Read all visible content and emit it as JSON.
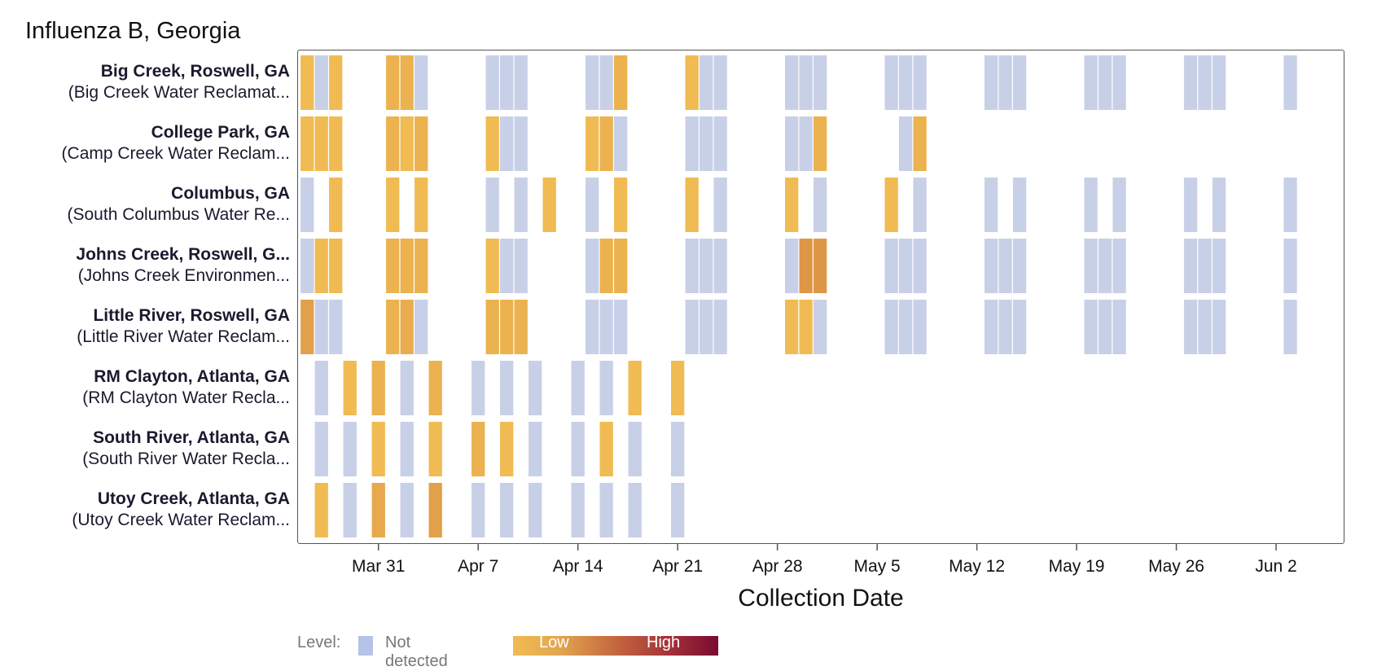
{
  "chart_data": {
    "type": "heatmap",
    "title": "Influenza B, Georgia",
    "xlabel": "Collection Date",
    "ylabel": "",
    "x_ticks": [
      {
        "label": "Mar 31",
        "day": 0
      },
      {
        "label": "Apr 7",
        "day": 7
      },
      {
        "label": "Apr 14",
        "day": 14
      },
      {
        "label": "Apr 21",
        "day": 21
      },
      {
        "label": "Apr 28",
        "day": 28
      },
      {
        "label": "May 5",
        "day": 35
      },
      {
        "label": "May 12",
        "day": 42
      },
      {
        "label": "May 19",
        "day": 49
      },
      {
        "label": "May 26",
        "day": 56
      },
      {
        "label": "Jun 2",
        "day": 63
      }
    ],
    "x_range_days": [
      -5.7,
      67.8
    ],
    "value_scale": {
      "not_detected": null,
      "low": 0,
      "high": 1
    },
    "colors": {
      "not_detected": "#c8d0e8",
      "low": "#f0bb52",
      "mid": "#d98e44",
      "high": "#7a0a32",
      "border": "#555555"
    },
    "rows": [
      {
        "site": "Big Creek, Roswell, GA",
        "plant": "(Big Creek Water Reclamat...",
        "samples": [
          {
            "day": -5,
            "level": 0.0
          },
          {
            "day": -4,
            "level": null
          },
          {
            "day": -3,
            "level": 0.0
          },
          {
            "day": 1,
            "level": 0.05
          },
          {
            "day": 2,
            "level": 0.05
          },
          {
            "day": 3,
            "level": null
          },
          {
            "day": 8,
            "level": null
          },
          {
            "day": 9,
            "level": null
          },
          {
            "day": 10,
            "level": null
          },
          {
            "day": 15,
            "level": null
          },
          {
            "day": 16,
            "level": null
          },
          {
            "day": 17,
            "level": 0.05
          },
          {
            "day": 22,
            "level": 0.0
          },
          {
            "day": 23,
            "level": null
          },
          {
            "day": 24,
            "level": null
          },
          {
            "day": 29,
            "level": null
          },
          {
            "day": 30,
            "level": null
          },
          {
            "day": 31,
            "level": null
          },
          {
            "day": 36,
            "level": null
          },
          {
            "day": 37,
            "level": null
          },
          {
            "day": 38,
            "level": null
          },
          {
            "day": 43,
            "level": null
          },
          {
            "day": 44,
            "level": null
          },
          {
            "day": 45,
            "level": null
          },
          {
            "day": 50,
            "level": null
          },
          {
            "day": 51,
            "level": null
          },
          {
            "day": 52,
            "level": null
          },
          {
            "day": 57,
            "level": null
          },
          {
            "day": 58,
            "level": null
          },
          {
            "day": 59,
            "level": null
          },
          {
            "day": 64,
            "level": null
          }
        ]
      },
      {
        "site": "College Park, GA",
        "plant": "(Camp Creek Water Reclam...",
        "samples": [
          {
            "day": -5,
            "level": 0.0
          },
          {
            "day": -4,
            "level": 0.0
          },
          {
            "day": -3,
            "level": 0.0
          },
          {
            "day": 1,
            "level": 0.05
          },
          {
            "day": 2,
            "level": 0.0
          },
          {
            "day": 3,
            "level": 0.05
          },
          {
            "day": 8,
            "level": 0.0
          },
          {
            "day": 9,
            "level": null
          },
          {
            "day": 10,
            "level": null
          },
          {
            "day": 15,
            "level": 0.0
          },
          {
            "day": 16,
            "level": 0.05
          },
          {
            "day": 17,
            "level": null
          },
          {
            "day": 22,
            "level": null
          },
          {
            "day": 23,
            "level": null
          },
          {
            "day": 24,
            "level": null
          },
          {
            "day": 29,
            "level": null
          },
          {
            "day": 30,
            "level": null
          },
          {
            "day": 31,
            "level": 0.05
          },
          {
            "day": 37,
            "level": null
          },
          {
            "day": 38,
            "level": 0.05
          }
        ]
      },
      {
        "site": "Columbus, GA",
        "plant": "(South Columbus Water Re...",
        "samples": [
          {
            "day": -5,
            "level": null
          },
          {
            "day": -3,
            "level": 0.0
          },
          {
            "day": 1,
            "level": 0.0
          },
          {
            "day": 3,
            "level": 0.0
          },
          {
            "day": 8,
            "level": null
          },
          {
            "day": 10,
            "level": null
          },
          {
            "day": 12,
            "level": 0.0
          },
          {
            "day": 15,
            "level": null
          },
          {
            "day": 17,
            "level": 0.0
          },
          {
            "day": 22,
            "level": 0.0
          },
          {
            "day": 24,
            "level": null
          },
          {
            "day": 29,
            "level": 0.0
          },
          {
            "day": 31,
            "level": null
          },
          {
            "day": 36,
            "level": 0.0
          },
          {
            "day": 38,
            "level": null
          },
          {
            "day": 43,
            "level": null
          },
          {
            "day": 45,
            "level": null
          },
          {
            "day": 50,
            "level": null
          },
          {
            "day": 52,
            "level": null
          },
          {
            "day": 57,
            "level": null
          },
          {
            "day": 59,
            "level": null
          },
          {
            "day": 64,
            "level": null
          }
        ]
      },
      {
        "site": "Johns Creek, Roswell, G...",
        "plant": "(Johns Creek Environmen...",
        "samples": [
          {
            "day": -5,
            "level": null
          },
          {
            "day": -4,
            "level": 0.0
          },
          {
            "day": -3,
            "level": 0.0
          },
          {
            "day": 1,
            "level": 0.05
          },
          {
            "day": 2,
            "level": 0.05
          },
          {
            "day": 3,
            "level": 0.05
          },
          {
            "day": 8,
            "level": 0.0
          },
          {
            "day": 9,
            "level": null
          },
          {
            "day": 10,
            "level": null
          },
          {
            "day": 15,
            "level": null
          },
          {
            "day": 16,
            "level": 0.05
          },
          {
            "day": 17,
            "level": 0.05
          },
          {
            "day": 22,
            "level": null
          },
          {
            "day": 23,
            "level": null
          },
          {
            "day": 24,
            "level": null
          },
          {
            "day": 29,
            "level": null
          },
          {
            "day": 30,
            "level": 0.2
          },
          {
            "day": 31,
            "level": 0.2
          },
          {
            "day": 36,
            "level": null
          },
          {
            "day": 37,
            "level": null
          },
          {
            "day": 38,
            "level": null
          },
          {
            "day": 43,
            "level": null
          },
          {
            "day": 44,
            "level": null
          },
          {
            "day": 45,
            "level": null
          },
          {
            "day": 50,
            "level": null
          },
          {
            "day": 51,
            "level": null
          },
          {
            "day": 52,
            "level": null
          },
          {
            "day": 57,
            "level": null
          },
          {
            "day": 58,
            "level": null
          },
          {
            "day": 59,
            "level": null
          },
          {
            "day": 64,
            "level": null
          }
        ]
      },
      {
        "site": "Little River, Roswell, GA",
        "plant": "(Little River Water Reclam...",
        "samples": [
          {
            "day": -5,
            "level": 0.15
          },
          {
            "day": -4,
            "level": null
          },
          {
            "day": -3,
            "level": null
          },
          {
            "day": 1,
            "level": 0.05
          },
          {
            "day": 2,
            "level": 0.08
          },
          {
            "day": 3,
            "level": null
          },
          {
            "day": 8,
            "level": 0.05
          },
          {
            "day": 9,
            "level": 0.05
          },
          {
            "day": 10,
            "level": 0.05
          },
          {
            "day": 15,
            "level": null
          },
          {
            "day": 16,
            "level": null
          },
          {
            "day": 17,
            "level": null
          },
          {
            "day": 22,
            "level": null
          },
          {
            "day": 23,
            "level": null
          },
          {
            "day": 24,
            "level": null
          },
          {
            "day": 29,
            "level": 0.0
          },
          {
            "day": 30,
            "level": 0.0
          },
          {
            "day": 31,
            "level": null
          },
          {
            "day": 36,
            "level": null
          },
          {
            "day": 37,
            "level": null
          },
          {
            "day": 38,
            "level": null
          },
          {
            "day": 43,
            "level": null
          },
          {
            "day": 44,
            "level": null
          },
          {
            "day": 45,
            "level": null
          },
          {
            "day": 50,
            "level": null
          },
          {
            "day": 51,
            "level": null
          },
          {
            "day": 52,
            "level": null
          },
          {
            "day": 57,
            "level": null
          },
          {
            "day": 58,
            "level": null
          },
          {
            "day": 59,
            "level": null
          },
          {
            "day": 64,
            "level": null
          }
        ]
      },
      {
        "site": "RM Clayton, Atlanta, GA",
        "plant": "(RM Clayton Water Recla...",
        "samples": [
          {
            "day": -4,
            "level": null
          },
          {
            "day": -2,
            "level": 0.0
          },
          {
            "day": 0,
            "level": 0.05
          },
          {
            "day": 2,
            "level": null
          },
          {
            "day": 4,
            "level": 0.05
          },
          {
            "day": 7,
            "level": null
          },
          {
            "day": 9,
            "level": null
          },
          {
            "day": 11,
            "level": null
          },
          {
            "day": 14,
            "level": null
          },
          {
            "day": 16,
            "level": null
          },
          {
            "day": 18,
            "level": 0.0
          },
          {
            "day": 21,
            "level": 0.0
          }
        ]
      },
      {
        "site": "South River, Atlanta, GA",
        "plant": "(South River Water Recla...",
        "samples": [
          {
            "day": -4,
            "level": null
          },
          {
            "day": -2,
            "level": null
          },
          {
            "day": 0,
            "level": 0.0
          },
          {
            "day": 2,
            "level": null
          },
          {
            "day": 4,
            "level": 0.0
          },
          {
            "day": 7,
            "level": 0.05
          },
          {
            "day": 9,
            "level": 0.0
          },
          {
            "day": 11,
            "level": null
          },
          {
            "day": 14,
            "level": null
          },
          {
            "day": 16,
            "level": 0.0
          },
          {
            "day": 18,
            "level": null
          },
          {
            "day": 21,
            "level": null
          }
        ]
      },
      {
        "site": "Utoy Creek, Atlanta, GA",
        "plant": "(Utoy Creek Water Reclam...",
        "samples": [
          {
            "day": -4,
            "level": 0.0
          },
          {
            "day": -2,
            "level": null
          },
          {
            "day": 0,
            "level": 0.1
          },
          {
            "day": 2,
            "level": null
          },
          {
            "day": 4,
            "level": 0.15
          },
          {
            "day": 7,
            "level": null
          },
          {
            "day": 9,
            "level": null
          },
          {
            "day": 11,
            "level": null
          },
          {
            "day": 14,
            "level": null
          },
          {
            "day": 16,
            "level": null
          },
          {
            "day": 18,
            "level": null
          },
          {
            "day": 21,
            "level": null
          }
        ]
      }
    ],
    "legend": {
      "title": "Level:",
      "not_detected_label": "Not detected",
      "low_label": "Low",
      "high_label": "High"
    }
  }
}
